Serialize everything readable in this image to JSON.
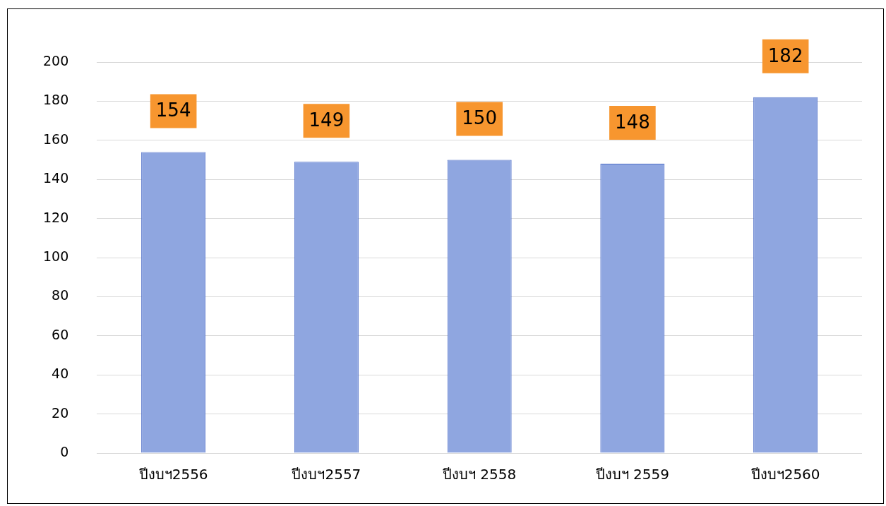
{
  "chart_data": {
    "type": "bar",
    "categories": [
      "ปีงบฯ2556",
      "ปีงบฯ2557",
      "ปีงบฯ 2558",
      "ปีงบฯ 2559",
      "ปีงบฯ2560"
    ],
    "values": [
      154,
      149,
      150,
      148,
      182
    ],
    "color": "#8fa6e0",
    "ylim": [
      0,
      200
    ],
    "yticks": [
      0,
      20,
      40,
      60,
      80,
      100,
      120,
      140,
      160,
      180,
      200
    ],
    "grid": "y",
    "data_labels": true,
    "legend": false
  }
}
